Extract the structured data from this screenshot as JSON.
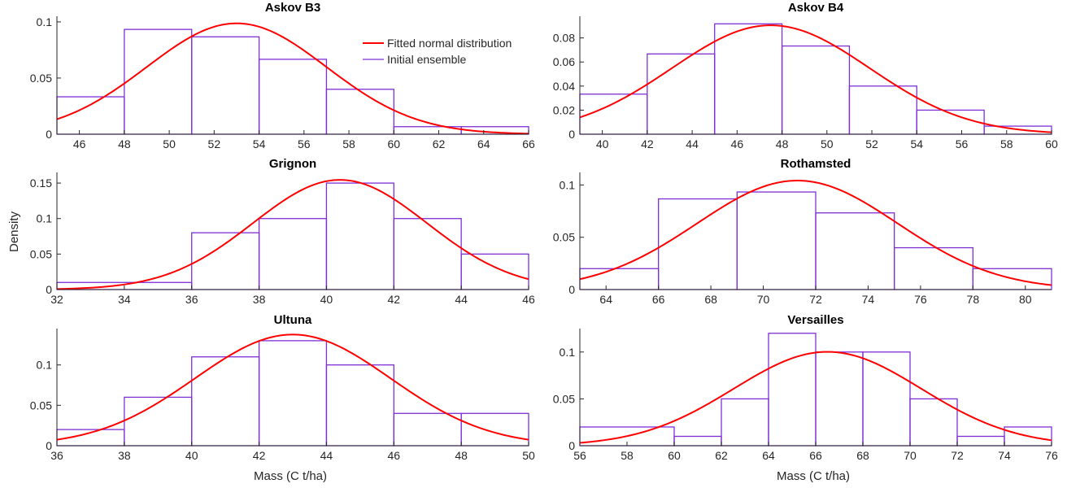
{
  "colors": {
    "hist": "#7E2FD6",
    "fit": "#FF0000",
    "axis": "#262626"
  },
  "legend": {
    "panel": 0,
    "items": [
      {
        "label": "Fitted normal distribution",
        "color": "#FF0000"
      },
      {
        "label": "Initial ensemble",
        "color": "#7E2FD6"
      }
    ]
  },
  "ylabel": "Density",
  "xlabel": "Mass (C t/ha)",
  "chart_data": [
    {
      "type": "bar",
      "title": "Askov B3",
      "xlim": [
        45,
        66
      ],
      "ylim": [
        0,
        0.105
      ],
      "xticks": [
        46,
        48,
        50,
        52,
        54,
        56,
        58,
        60,
        62,
        64,
        66
      ],
      "yticks": [
        0,
        0.05,
        0.1
      ],
      "ytick_labels": [
        "0",
        "0.05",
        "0.1"
      ],
      "bins": [
        [
          45,
          48,
          0.0333
        ],
        [
          48,
          51,
          0.0933
        ],
        [
          51,
          54,
          0.0867
        ],
        [
          54,
          57,
          0.0667
        ],
        [
          57,
          60,
          0.04
        ],
        [
          60,
          63,
          0.0067
        ],
        [
          63,
          66,
          0.0067
        ]
      ],
      "normal": {
        "mu": 53,
        "sigma": 4.0,
        "peak": 0.0987
      }
    },
    {
      "type": "bar",
      "title": "Askov B4",
      "xlim": [
        39,
        60
      ],
      "ylim": [
        0,
        0.098
      ],
      "xticks": [
        40,
        42,
        44,
        46,
        48,
        50,
        52,
        54,
        56,
        58,
        60
      ],
      "yticks": [
        0,
        0.02,
        0.04,
        0.06,
        0.08
      ],
      "ytick_labels": [
        "0",
        "0.02",
        "0.04",
        "0.06",
        "0.08"
      ],
      "bins": [
        [
          39,
          42,
          0.0333
        ],
        [
          42,
          45,
          0.0667
        ],
        [
          45,
          48,
          0.0917
        ],
        [
          48,
          51,
          0.0733
        ],
        [
          51,
          54,
          0.04
        ],
        [
          54,
          57,
          0.02
        ],
        [
          57,
          60,
          0.0067
        ]
      ],
      "normal": {
        "mu": 47.5,
        "sigma": 4.4,
        "peak": 0.0905
      }
    },
    {
      "type": "bar",
      "title": "Grignon",
      "xlim": [
        32,
        46
      ],
      "ylim": [
        0,
        0.165
      ],
      "xticks": [
        32,
        34,
        36,
        38,
        40,
        42,
        44,
        46
      ],
      "yticks": [
        0,
        0.05,
        0.1,
        0.15
      ],
      "ytick_labels": [
        "0",
        "0.05",
        "0.1",
        "0.15"
      ],
      "bins": [
        [
          32,
          36,
          0.01
        ],
        [
          36,
          38,
          0.08
        ],
        [
          38,
          40,
          0.1
        ],
        [
          40,
          42,
          0.15
        ],
        [
          42,
          44,
          0.1
        ],
        [
          44,
          46,
          0.05
        ]
      ],
      "normal": {
        "mu": 40.4,
        "sigma": 2.58,
        "peak": 0.1545
      }
    },
    {
      "type": "bar",
      "title": "Rothamsted",
      "xlim": [
        63,
        81
      ],
      "ylim": [
        0,
        0.112
      ],
      "xticks": [
        64,
        66,
        68,
        70,
        72,
        74,
        76,
        78,
        80
      ],
      "yticks": [
        0,
        0.05,
        0.1
      ],
      "ytick_labels": [
        "0",
        "0.05",
        "0.1"
      ],
      "bins": [
        [
          63,
          66,
          0.02
        ],
        [
          66,
          69,
          0.0867
        ],
        [
          69,
          72,
          0.0933
        ],
        [
          72,
          75,
          0.0733
        ],
        [
          75,
          78,
          0.04
        ],
        [
          78,
          81,
          0.02
        ]
      ],
      "normal": {
        "mu": 71.3,
        "sigma": 3.83,
        "peak": 0.1042
      }
    },
    {
      "type": "bar",
      "title": "Ultuna",
      "xlim": [
        36,
        50
      ],
      "ylim": [
        0,
        0.145
      ],
      "xticks": [
        36,
        38,
        40,
        42,
        44,
        46,
        48,
        50
      ],
      "yticks": [
        0,
        0.05,
        0.1
      ],
      "ytick_labels": [
        "0",
        "0.05",
        "0.1"
      ],
      "bins": [
        [
          36,
          38,
          0.02
        ],
        [
          38,
          40,
          0.06
        ],
        [
          40,
          42,
          0.11
        ],
        [
          42,
          44,
          0.13
        ],
        [
          44,
          46,
          0.1
        ],
        [
          46,
          48,
          0.04
        ],
        [
          48,
          50,
          0.04
        ]
      ],
      "normal": {
        "mu": 43,
        "sigma": 2.9,
        "peak": 0.1376
      }
    },
    {
      "type": "bar",
      "title": "Versailles",
      "xlim": [
        56,
        76
      ],
      "ylim": [
        0,
        0.125
      ],
      "xticks": [
        56,
        58,
        60,
        62,
        64,
        66,
        68,
        70,
        72,
        74,
        76
      ],
      "yticks": [
        0,
        0.05,
        0.1
      ],
      "ytick_labels": [
        "0",
        "0.05",
        "0.1"
      ],
      "bins": [
        [
          56,
          60,
          0.02
        ],
        [
          60,
          62,
          0.01
        ],
        [
          62,
          64,
          0.05
        ],
        [
          64,
          66,
          0.12
        ],
        [
          66,
          68,
          0.1
        ],
        [
          68,
          70,
          0.1
        ],
        [
          70,
          72,
          0.05
        ],
        [
          72,
          74,
          0.01
        ],
        [
          74,
          76,
          0.02
        ]
      ],
      "normal": {
        "mu": 66.5,
        "sigma": 3.98,
        "peak": 0.1002
      }
    }
  ]
}
